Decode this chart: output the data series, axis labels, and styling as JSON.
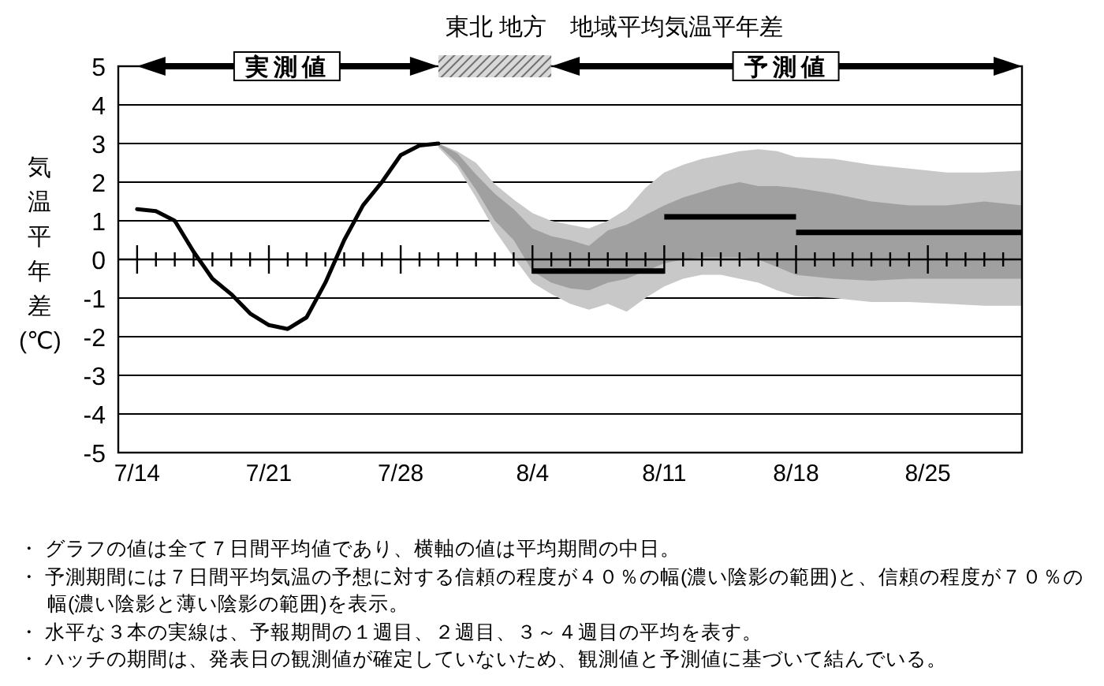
{
  "chart_data": {
    "type": "line",
    "title": "東北 地方　地域平均気温平年差",
    "ylabel": "気温平年差(℃)",
    "xlim": [
      "--07-13",
      "--08-30"
    ],
    "ylim": [
      -5,
      5
    ],
    "yticks": [
      -5,
      -4,
      -3,
      -2,
      -1,
      0,
      1,
      2,
      3,
      4,
      5
    ],
    "xticks": [
      {
        "value": "--07-14",
        "label": "7/14"
      },
      {
        "value": "--07-15",
        "label": null
      },
      {
        "value": "--07-16",
        "label": null
      },
      {
        "value": "--07-17",
        "label": null
      },
      {
        "value": "--07-18",
        "label": null
      },
      {
        "value": "--07-19",
        "label": null
      },
      {
        "value": "--07-20",
        "label": null
      },
      {
        "value": "--07-21",
        "label": "7/21"
      },
      {
        "value": "--07-22",
        "label": null
      },
      {
        "value": "--07-23",
        "label": null
      },
      {
        "value": "--07-24",
        "label": null
      },
      {
        "value": "--07-25",
        "label": null
      },
      {
        "value": "--07-26",
        "label": null
      },
      {
        "value": "--07-27",
        "label": null
      },
      {
        "value": "--07-28",
        "label": "7/28"
      },
      {
        "value": "--07-29",
        "label": null
      },
      {
        "value": "--07-30",
        "label": null
      },
      {
        "value": "--07-31",
        "label": null
      },
      {
        "value": "--08-01",
        "label": null
      },
      {
        "value": "--08-02",
        "label": null
      },
      {
        "value": "--08-03",
        "label": null
      },
      {
        "value": "--08-04",
        "label": "8/4"
      },
      {
        "value": "--08-05",
        "label": null
      },
      {
        "value": "--08-06",
        "label": null
      },
      {
        "value": "--08-07",
        "label": null
      },
      {
        "value": "--08-08",
        "label": null
      },
      {
        "value": "--08-09",
        "label": null
      },
      {
        "value": "--08-10",
        "label": null
      },
      {
        "value": "--08-11",
        "label": "8/11"
      },
      {
        "value": "--08-12",
        "label": null
      },
      {
        "value": "--08-13",
        "label": null
      },
      {
        "value": "--08-14",
        "label": null
      },
      {
        "value": "--08-15",
        "label": null
      },
      {
        "value": "--08-16",
        "label": null
      },
      {
        "value": "--08-17",
        "label": null
      },
      {
        "value": "--08-18",
        "label": "8/18"
      },
      {
        "value": "--08-19",
        "label": null
      },
      {
        "value": "--08-20",
        "label": null
      },
      {
        "value": "--08-21",
        "label": null
      },
      {
        "value": "--08-22",
        "label": null
      },
      {
        "value": "--08-23",
        "label": null
      },
      {
        "value": "--08-24",
        "label": null
      },
      {
        "value": "--08-25",
        "label": "8/25"
      },
      {
        "value": "--08-26",
        "label": null
      },
      {
        "value": "--08-27",
        "label": null
      },
      {
        "value": "--08-28",
        "label": null
      },
      {
        "value": "--08-29",
        "label": null
      }
    ],
    "grid": "y",
    "series": [
      {
        "type": "line",
        "color": "#c8c8c8",
        "x": [
          "--07-30",
          "--07-31",
          "--08-01",
          "--08-02",
          "--08-03",
          "--08-04",
          "--08-05",
          "--08-06",
          "--08-07",
          "--08-08",
          "--08-09",
          "--08-10",
          "--08-11",
          "--08-12",
          "--08-13",
          "--08-14",
          "--08-15",
          "--08-16",
          "--08-17",
          "--08-18",
          "--08-20",
          "--08-22",
          "--08-24",
          "--08-26",
          "--08-28",
          "--08-30"
        ],
        "values": [
          null,
          null,
          null,
          null,
          null,
          null,
          null,
          null,
          null,
          null,
          null,
          null,
          null,
          null,
          null,
          null,
          null,
          null,
          null,
          null,
          null,
          null,
          null,
          null,
          null,
          null
        ],
        "lower": [
          2.9,
          2.4,
          1.6,
          0.75,
          0.05,
          -0.6,
          -0.9,
          -1.15,
          -1.3,
          -1.15,
          -1.35,
          -1.0,
          -0.7,
          -0.5,
          -0.4,
          -0.4,
          -0.5,
          -0.6,
          -0.8,
          -0.95,
          -1.0,
          -1.1,
          -1.1,
          -1.15,
          -1.2,
          -1.2
        ],
        "upper": [
          3.0,
          2.8,
          2.5,
          1.95,
          1.55,
          1.2,
          1.0,
          0.9,
          0.8,
          1.0,
          1.3,
          1.85,
          2.25,
          2.45,
          2.6,
          2.7,
          2.8,
          2.85,
          2.8,
          2.65,
          2.6,
          2.45,
          2.35,
          2.25,
          2.25,
          2.3
        ]
      },
      {
        "type": "line",
        "color": "#a0a0a0",
        "x": [
          "--07-30",
          "--07-31",
          "--08-01",
          "--08-02",
          "--08-03",
          "--08-04",
          "--08-05",
          "--08-06",
          "--08-07",
          "--08-08",
          "--08-09",
          "--08-10",
          "--08-11",
          "--08-12",
          "--08-13",
          "--08-14",
          "--08-15",
          "--08-16",
          "--08-17",
          "--08-18",
          "--08-20",
          "--08-22",
          "--08-24",
          "--08-26",
          "--08-28",
          "--08-30"
        ],
        "values": [
          null,
          null,
          null,
          null,
          null,
          null,
          null,
          null,
          null,
          null,
          null,
          null,
          null,
          null,
          null,
          null,
          null,
          null,
          null,
          null,
          null,
          null,
          null,
          null,
          null,
          null
        ],
        "lower": [
          2.95,
          2.5,
          1.8,
          1.0,
          0.5,
          -0.3,
          -0.6,
          -0.75,
          -0.8,
          -0.6,
          -0.5,
          -0.3,
          -0.1,
          0.0,
          0.05,
          0.05,
          0.05,
          0.0,
          -0.2,
          -0.4,
          -0.5,
          -0.55,
          -0.5,
          -0.5,
          -0.5,
          -0.5
        ],
        "upper": [
          3.0,
          2.75,
          2.2,
          1.7,
          1.3,
          0.8,
          0.6,
          0.5,
          0.35,
          0.75,
          0.9,
          1.15,
          1.4,
          1.6,
          1.75,
          1.9,
          2.0,
          1.9,
          1.9,
          1.85,
          1.7,
          1.5,
          1.4,
          1.4,
          1.5,
          1.4
        ]
      },
      {
        "type": "line",
        "color": "#000000",
        "x": [
          "--07-14",
          "--07-15",
          "--07-16",
          "--07-17",
          "--07-18",
          "--07-19",
          "--07-20",
          "--07-21",
          "--07-22",
          "--07-23",
          "--07-24",
          "--07-25",
          "--07-26",
          "--07-27",
          "--07-28",
          "--07-29",
          "--07-30"
        ],
        "values": [
          1.3,
          1.25,
          1.0,
          0.2,
          -0.5,
          -0.9,
          -1.4,
          -1.7,
          -1.8,
          -1.5,
          -0.6,
          0.5,
          1.4,
          2.0,
          2.7,
          2.95,
          3.0
        ]
      },
      {
        "type": "step",
        "color": "#000000",
        "x": [
          "--08-04",
          "--08-11"
        ],
        "values": [
          -0.3,
          -0.3
        ]
      },
      {
        "type": "step",
        "color": "#000000",
        "x": [
          "--08-11",
          "--08-18"
        ],
        "values": [
          1.1,
          1.1
        ]
      },
      {
        "type": "step",
        "color": "#000000",
        "x": [
          "--08-18",
          "--08-30"
        ],
        "values": [
          0.7,
          0.7
        ]
      }
    ],
    "annotations": [
      "実測値",
      "予測値",
      "・ グラフの値は全て７日間平均値であり、横軸の値は平均期間の中日。",
      "・ 予測期間には７日間平均気温の予想に対する信頼の程度が４０％の幅(濃い陰影の範囲)と、信頼の程度が７０％の幅(濃い陰影と薄い陰影の範囲)を表示。",
      "・ 水平な３本の実線は、予報期間の１週目、２週目、３～４週目の平均を表す。",
      "・ ハッチの期間は、発表日の観測値が確定していないため、観測値と予測値に基づいて結んでいる。"
    ]
  }
}
